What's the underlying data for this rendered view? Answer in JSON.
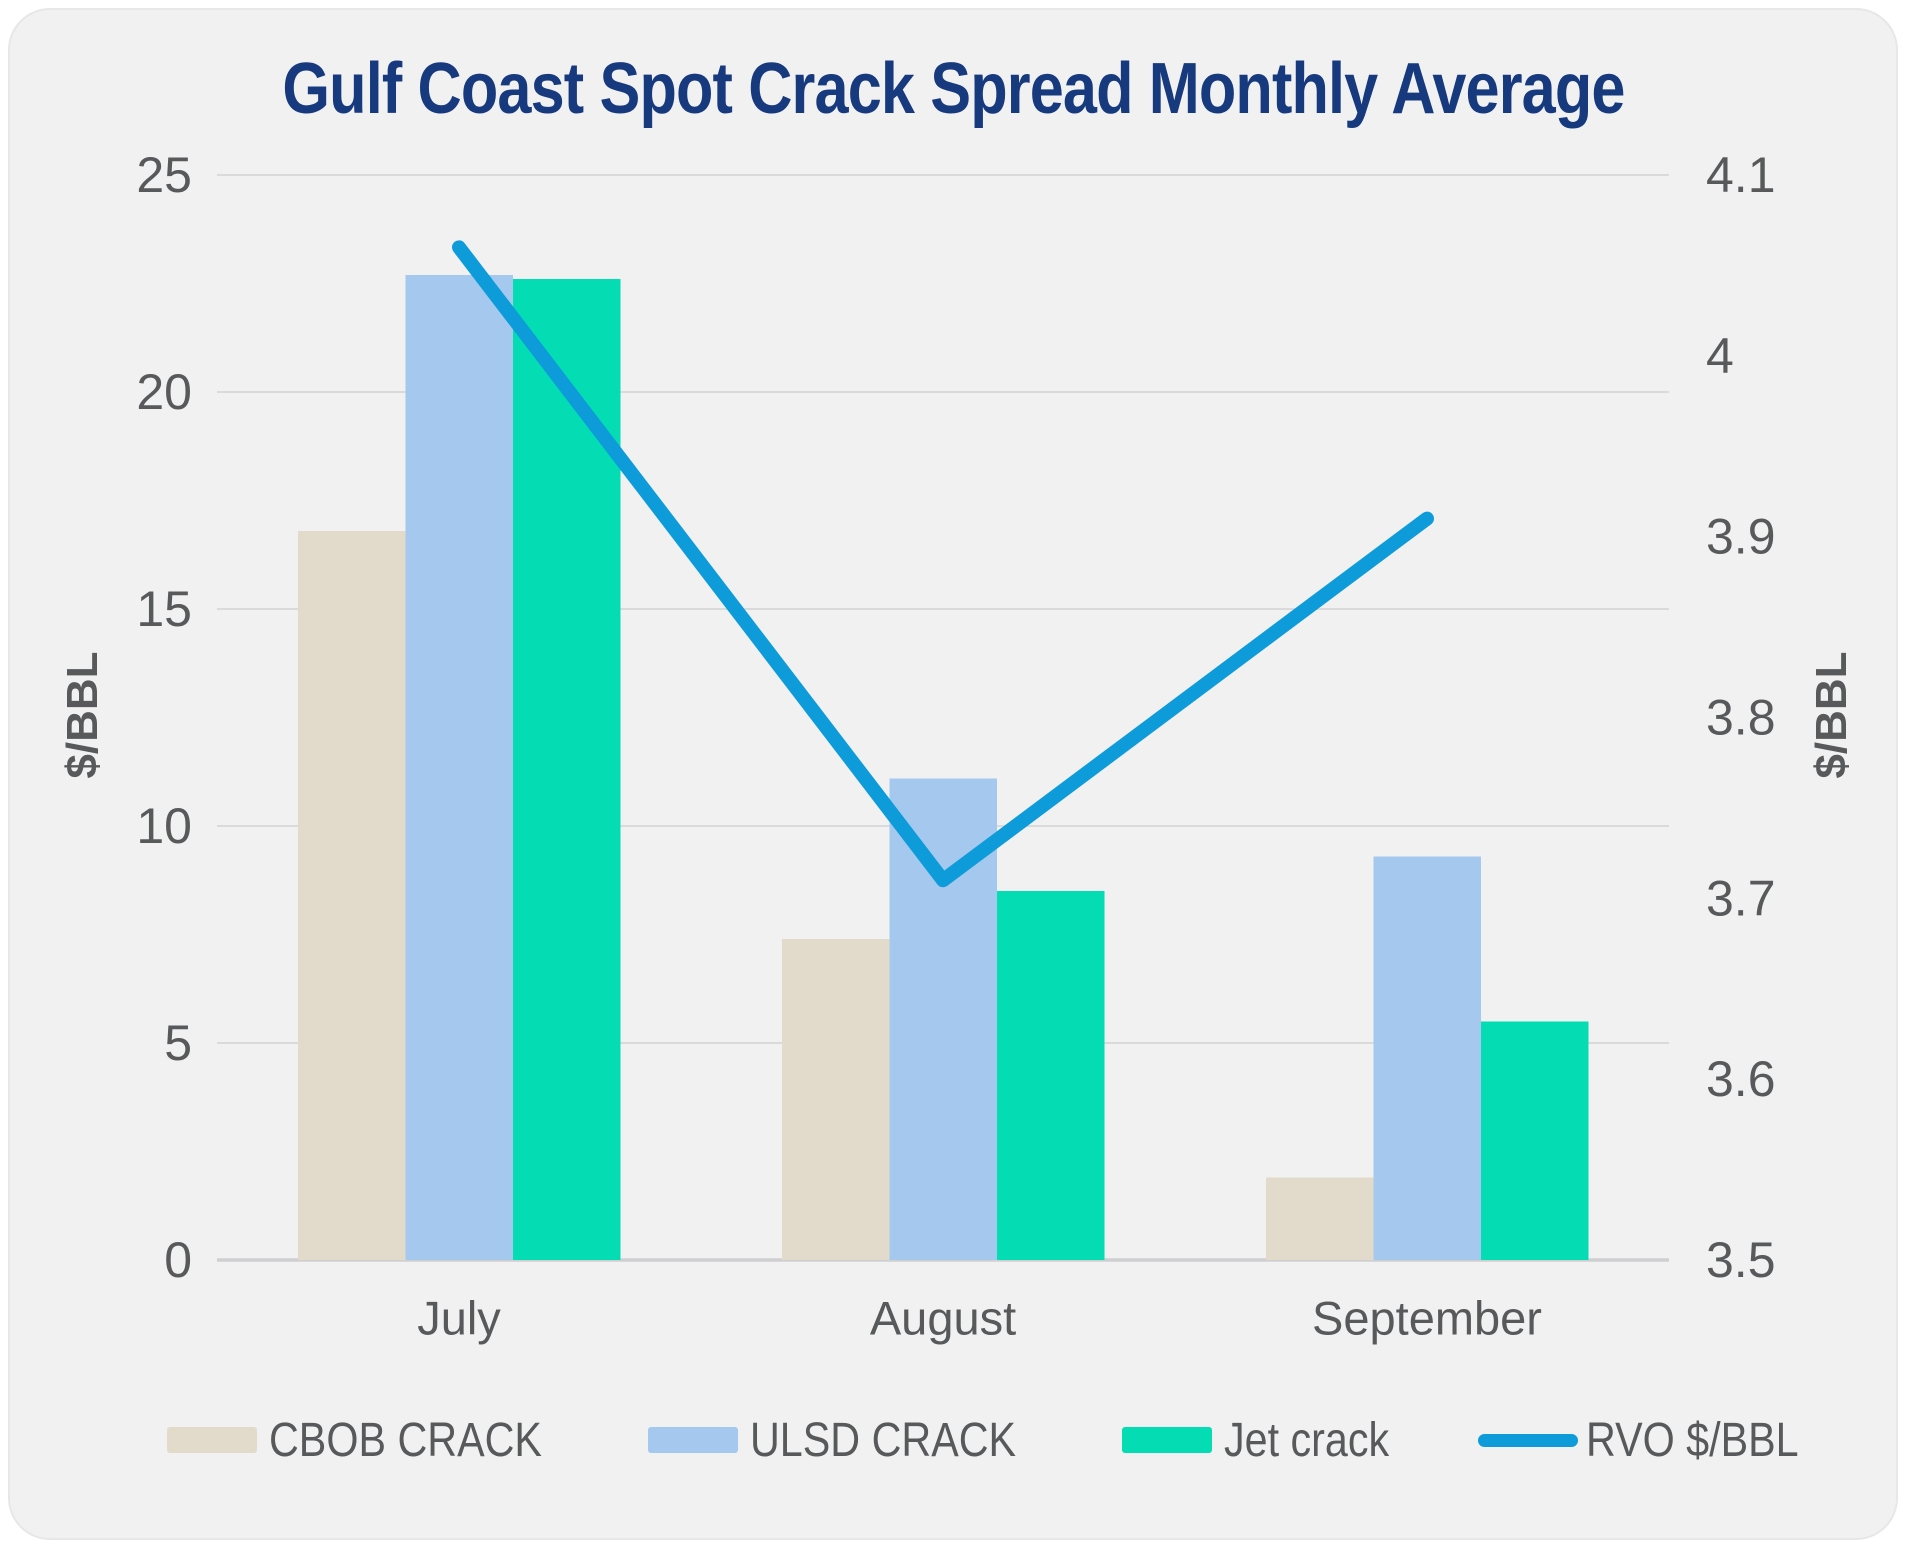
{
  "title": "Gulf Coast Spot Crack Spread Monthly Average",
  "colors": {
    "title": "#173a7e",
    "text_gray": "#58595b",
    "gridline": "#dadadb",
    "zero_line": "#cfcfd1",
    "card_bg": "#f1f1f2",
    "cbob": "#e2dbcb",
    "ulsd": "#a5c9ee",
    "jet": "#04ddb3",
    "rvo": "#0d9cd9"
  },
  "left_axis": {
    "title": "$/BBL",
    "ticks": [
      {
        "v": 25,
        "label": "25"
      },
      {
        "v": 20,
        "label": "20"
      },
      {
        "v": 15,
        "label": "15"
      },
      {
        "v": 10,
        "label": "10"
      },
      {
        "v": 5,
        "label": "5"
      },
      {
        "v": 0,
        "label": "0"
      }
    ]
  },
  "right_axis": {
    "title": "$/BBL",
    "ticks": [
      {
        "v": 4.1,
        "label": "4.1"
      },
      {
        "v": 4.0,
        "label": "4"
      },
      {
        "v": 3.9,
        "label": "3.9"
      },
      {
        "v": 3.8,
        "label": "3.8"
      },
      {
        "v": 3.7,
        "label": "3.7"
      },
      {
        "v": 3.6,
        "label": "3.6"
      },
      {
        "v": 3.5,
        "label": "3.5"
      }
    ]
  },
  "chart_data": {
    "type": "bar+line",
    "title": "Gulf Coast Spot Crack Spread Monthly Average",
    "categories": [
      "July",
      "August",
      "September"
    ],
    "left_ylabel": "$/BBL",
    "right_ylabel": "$/BBL",
    "left_ylim": [
      0,
      25
    ],
    "right_ylim": [
      3.5,
      4.1
    ],
    "grid": "horizontal",
    "legend_position": "bottom",
    "series": [
      {
        "name": "CBOB CRACK",
        "type": "bar",
        "axis": "left",
        "color": "#e2dbcb",
        "values": [
          16.8,
          7.4,
          1.9
        ]
      },
      {
        "name": "ULSD CRACK",
        "type": "bar",
        "axis": "left",
        "color": "#a5c9ee",
        "values": [
          22.7,
          11.1,
          9.3
        ]
      },
      {
        "name": "Jet crack",
        "type": "bar",
        "axis": "left",
        "color": "#04ddb3",
        "values": [
          22.6,
          8.5,
          5.5
        ]
      },
      {
        "name": "RVO $/BBL",
        "type": "line",
        "axis": "right",
        "color": "#0d9cd9",
        "values": [
          4.06,
          3.71,
          3.91
        ]
      }
    ]
  }
}
